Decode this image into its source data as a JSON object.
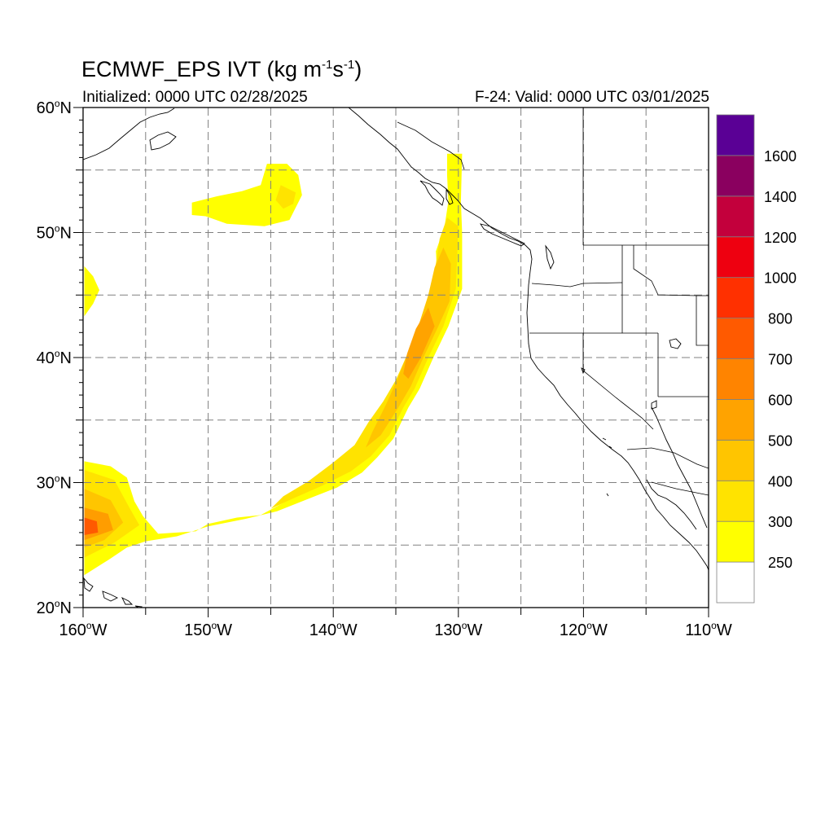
{
  "header": {
    "title_main": "ECMWF_EPS IVT (kg m",
    "title_exp1": "-1",
    "title_mid": "s",
    "title_exp2": "-1",
    "title_end": ")",
    "initialized": "Initialized: 0000 UTC 02/28/2025",
    "valid": "F-24: Valid: 0000 UTC 03/01/2025"
  },
  "map": {
    "lon_range": [
      -160,
      -110
    ],
    "lat_range": [
      20,
      60
    ],
    "lat_ticks": [
      {
        "value": 60,
        "label": "60"
      },
      {
        "value": 50,
        "label": "50"
      },
      {
        "value": 40,
        "label": "40"
      },
      {
        "value": 30,
        "label": "30"
      },
      {
        "value": 20,
        "label": "20"
      }
    ],
    "lon_ticks": [
      {
        "value": -160,
        "label": "160"
      },
      {
        "value": -150,
        "label": "150"
      },
      {
        "value": -140,
        "label": "140"
      },
      {
        "value": -130,
        "label": "130"
      },
      {
        "value": -120,
        "label": "120"
      },
      {
        "value": -110,
        "label": "110"
      }
    ],
    "lat_suffix": "N",
    "lon_suffix": "W",
    "degree_symbol": "o",
    "gridlines": "dashed every 5 degrees",
    "colors": {
      "coast": "#000000",
      "grid": "#808080",
      "border": "#808080"
    },
    "ivt_field": [
      {
        "level": 250,
        "color": "#ffff00",
        "shape": [
          [
            -145.3,
            55.5
          ],
          [
            -143.7,
            55.5
          ],
          [
            -142.8,
            54.6
          ],
          [
            -142.5,
            53.0
          ],
          [
            -143.5,
            51.0
          ],
          [
            -145.5,
            50.5
          ],
          [
            -148.5,
            50.7
          ],
          [
            -150.2,
            51.3
          ],
          [
            -151.3,
            51.4
          ],
          [
            -151.3,
            52.4
          ],
          [
            -149.3,
            52.9
          ],
          [
            -147.3,
            53.3
          ],
          [
            -145.8,
            53.8
          ]
        ]
      },
      {
        "level": 300,
        "color": "#ffe300",
        "shape": [
          [
            -144.2,
            53.8
          ],
          [
            -143.0,
            53.2
          ],
          [
            -143.2,
            52.3
          ],
          [
            -144.0,
            51.9
          ],
          [
            -144.6,
            52.6
          ]
        ]
      },
      {
        "level": 250,
        "color": "#ffff00",
        "shape": [
          [
            -159.9,
            47.3
          ],
          [
            -159.2,
            46.5
          ],
          [
            -158.7,
            45.4
          ],
          [
            -159.2,
            44.3
          ],
          [
            -159.9,
            43.3
          ]
        ]
      },
      {
        "level": 250,
        "color": "#ffff00",
        "shape": [
          [
            -130.9,
            56.3
          ],
          [
            -129.7,
            56.3
          ],
          [
            -129.8,
            52.5
          ],
          [
            -129.7,
            50.0
          ],
          [
            -129.7,
            45.5
          ],
          [
            -130.8,
            42.5
          ],
          [
            -132.0,
            40.0
          ],
          [
            -133.1,
            37.5
          ],
          [
            -134.0,
            36.0
          ],
          [
            -135.2,
            33.5
          ],
          [
            -136.5,
            32.0
          ],
          [
            -137.7,
            30.8
          ],
          [
            -139.7,
            29.6
          ],
          [
            -142.0,
            28.7
          ],
          [
            -144.5,
            27.7
          ],
          [
            -147.0,
            27.1
          ],
          [
            -150.0,
            26.5
          ],
          [
            -152.5,
            25.7
          ],
          [
            -155.0,
            25.3
          ],
          [
            -156.5,
            24.8
          ],
          [
            -158.0,
            23.8
          ],
          [
            -159.9,
            22.6
          ],
          [
            -159.9,
            31.7
          ],
          [
            -157.8,
            31.3
          ],
          [
            -156.5,
            30.4
          ],
          [
            -155.9,
            28.5
          ],
          [
            -155.2,
            27.3
          ],
          [
            -154.0,
            25.9
          ],
          [
            -151.0,
            26.1
          ],
          [
            -150.0,
            26.7
          ],
          [
            -147.7,
            27.2
          ],
          [
            -145.8,
            27.4
          ],
          [
            -144.7,
            28.0
          ],
          [
            -143.6,
            28.6
          ],
          [
            -142.3,
            29.4
          ],
          [
            -141.4,
            30.0
          ],
          [
            -139.5,
            31.4
          ],
          [
            -137.7,
            32.7
          ],
          [
            -136.8,
            34.0
          ],
          [
            -135.8,
            35.3
          ],
          [
            -135.2,
            37.0
          ],
          [
            -134.3,
            39.0
          ],
          [
            -133.4,
            41.0
          ],
          [
            -132.7,
            43.0
          ],
          [
            -132.3,
            45.0
          ],
          [
            -131.7,
            46.8
          ],
          [
            -131.8,
            48.5
          ],
          [
            -131.1,
            50.5
          ],
          [
            -130.8,
            52.5
          ],
          [
            -130.9,
            54.5
          ]
        ]
      },
      {
        "level": 300,
        "color": "#ffe300",
        "shape": [
          [
            -130.9,
            51.2
          ],
          [
            -130.0,
            50.5
          ],
          [
            -130.2,
            45.5
          ],
          [
            -131.2,
            42.5
          ],
          [
            -132.4,
            40.0
          ],
          [
            -133.5,
            37.5
          ],
          [
            -134.4,
            36.0
          ],
          [
            -135.5,
            33.8
          ],
          [
            -137.0,
            32.1
          ],
          [
            -138.6,
            30.9
          ],
          [
            -141.0,
            29.7
          ],
          [
            -143.5,
            28.6
          ],
          [
            -145.0,
            27.9
          ],
          [
            -144.0,
            28.9
          ],
          [
            -142.0,
            30.1
          ],
          [
            -140.0,
            31.6
          ],
          [
            -138.3,
            33.0
          ],
          [
            -137.2,
            34.8
          ],
          [
            -136.0,
            36.5
          ],
          [
            -135.0,
            38.2
          ],
          [
            -134.1,
            40.2
          ],
          [
            -133.1,
            42.5
          ],
          [
            -132.4,
            45.0
          ],
          [
            -131.8,
            47.5
          ],
          [
            -131.5,
            49.5
          ]
        ]
      },
      {
        "level": 400,
        "color": "#ffc500",
        "shape": [
          [
            -131.2,
            48.8
          ],
          [
            -130.6,
            47.5
          ],
          [
            -130.7,
            44.5
          ],
          [
            -131.6,
            42.5
          ],
          [
            -132.8,
            40.0
          ],
          [
            -133.8,
            37.7
          ],
          [
            -134.8,
            36.0
          ],
          [
            -136.2,
            33.8
          ],
          [
            -137.4,
            32.8
          ],
          [
            -136.9,
            34.0
          ],
          [
            -135.8,
            36.2
          ],
          [
            -134.9,
            38.2
          ],
          [
            -134.2,
            40.0
          ],
          [
            -133.2,
            42.5
          ],
          [
            -132.4,
            45.0
          ],
          [
            -131.9,
            47.2
          ]
        ]
      },
      {
        "level": 500,
        "color": "#ffa300",
        "shape": [
          [
            -132.4,
            44.0
          ],
          [
            -131.9,
            42.5
          ],
          [
            -133.0,
            40.0
          ],
          [
            -134.0,
            38.3
          ],
          [
            -134.4,
            38.7
          ],
          [
            -134.1,
            40.3
          ],
          [
            -133.4,
            42.3
          ]
        ]
      },
      {
        "level": 250,
        "color": "#ffe300",
        "shape": [
          [
            -159.9,
            31.0
          ],
          [
            -157.5,
            30.2
          ],
          [
            -156.3,
            28.0
          ],
          [
            -155.5,
            26.6
          ],
          [
            -157.5,
            25.2
          ],
          [
            -159.9,
            24.0
          ]
        ]
      },
      {
        "level": 400,
        "color": "#ffc500",
        "shape": [
          [
            -159.9,
            29.5
          ],
          [
            -157.8,
            28.6
          ],
          [
            -156.8,
            26.8
          ],
          [
            -158.3,
            25.4
          ],
          [
            -159.9,
            24.8
          ]
        ]
      },
      {
        "level": 500,
        "color": "#ff9d00",
        "shape": [
          [
            -159.9,
            28.0
          ],
          [
            -158.0,
            27.5
          ],
          [
            -157.6,
            26.2
          ],
          [
            -159.9,
            25.4
          ]
        ]
      },
      {
        "level": 700,
        "color": "#ff5a00",
        "shape": [
          [
            -159.9,
            27.2
          ],
          [
            -158.9,
            26.9
          ],
          [
            -158.8,
            26.0
          ],
          [
            -159.9,
            25.8
          ]
        ]
      }
    ]
  },
  "colorbar": {
    "levels": [
      {
        "label": "",
        "color": "#ffffff"
      },
      {
        "label": "250",
        "color": "#ffff00"
      },
      {
        "label": "300",
        "color": "#ffe300"
      },
      {
        "label": "400",
        "color": "#ffc500"
      },
      {
        "label": "500",
        "color": "#ffa300"
      },
      {
        "label": "600",
        "color": "#ff8400"
      },
      {
        "label": "700",
        "color": "#ff5a00"
      },
      {
        "label": "800",
        "color": "#ff3000"
      },
      {
        "label": "1000",
        "color": "#ee0010"
      },
      {
        "label": "1200",
        "color": "#c3003c"
      },
      {
        "label": "1400",
        "color": "#8a005f"
      },
      {
        "label": "1600",
        "color": "#5a0095"
      }
    ]
  }
}
